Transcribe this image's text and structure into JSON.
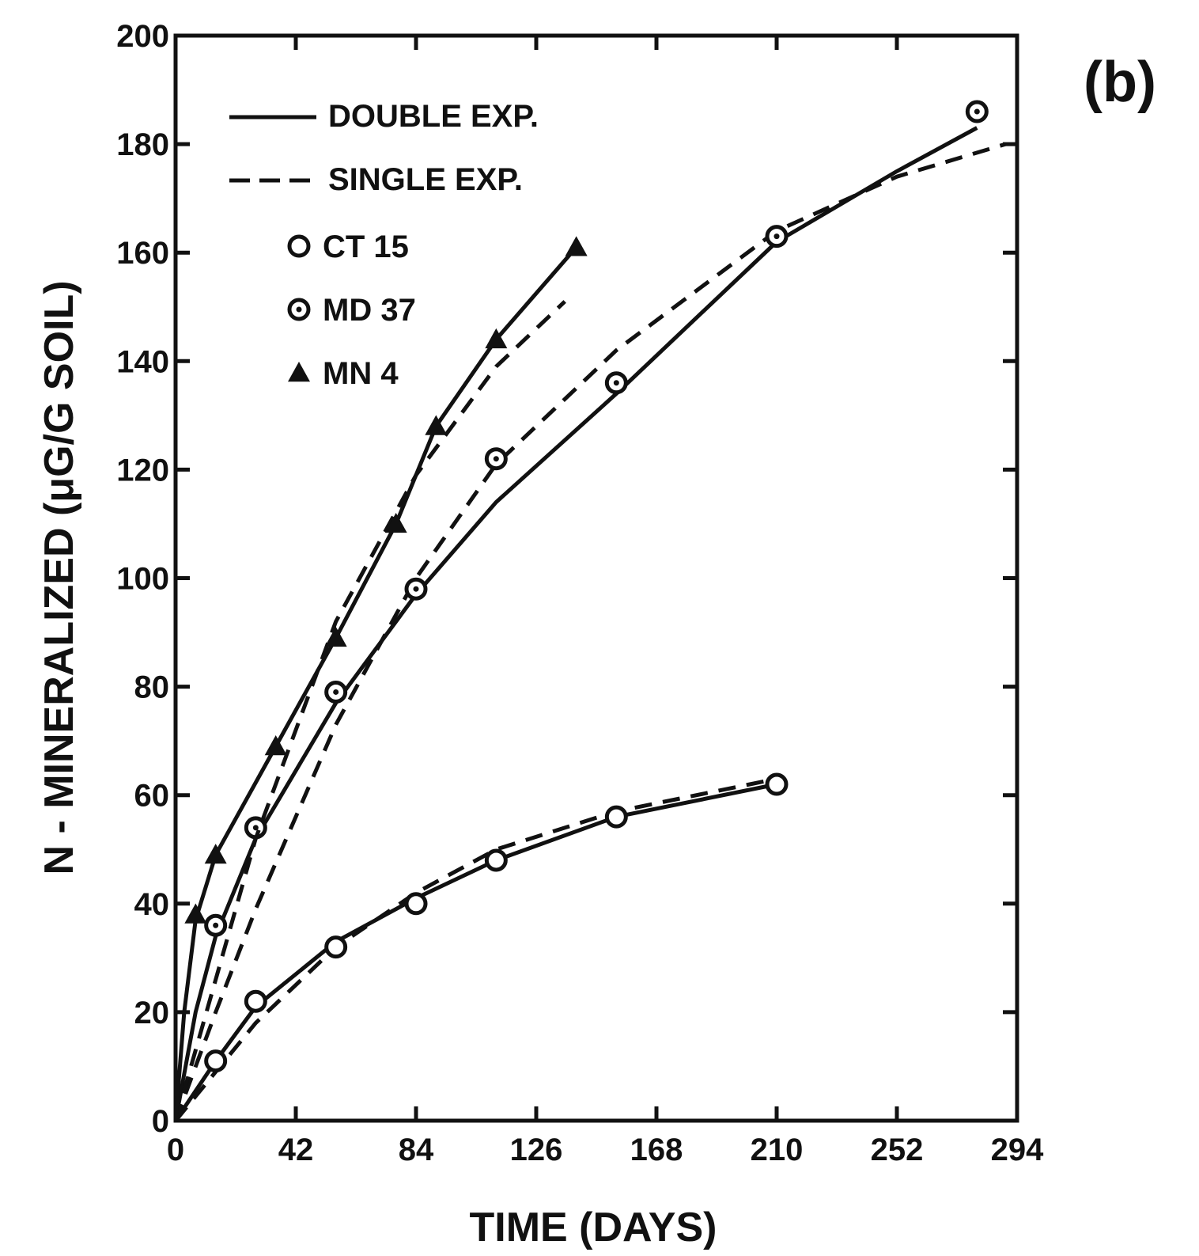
{
  "chart_data": {
    "type": "line",
    "panel_label": "(b)",
    "xlabel": "TIME (DAYS)",
    "ylabel": "N - MINERALIZED (μG/G SOIL)",
    "xlim": [
      0,
      294
    ],
    "ylim": [
      0,
      200
    ],
    "xticks": [
      0,
      42,
      84,
      126,
      168,
      210,
      252,
      294
    ],
    "yticks": [
      0,
      20,
      40,
      60,
      80,
      100,
      120,
      140,
      160,
      180,
      200
    ],
    "grid": false,
    "legend_position": "top-left",
    "legend": {
      "line_entries": [
        {
          "label": "DOUBLE EXP.",
          "style": "solid"
        },
        {
          "label": "SINGLE EXP.",
          "style": "dashed"
        }
      ],
      "marker_entries": [
        {
          "label": "CT 15",
          "marker": "open-circle"
        },
        {
          "label": "MD 37",
          "marker": "dotted-circle"
        },
        {
          "label": "MN 4",
          "marker": "triangle"
        }
      ]
    },
    "series": [
      {
        "name": "CT 15",
        "marker": "open-circle",
        "points": [
          {
            "x": 14,
            "y": 11
          },
          {
            "x": 28,
            "y": 22
          },
          {
            "x": 56,
            "y": 32
          },
          {
            "x": 84,
            "y": 40
          },
          {
            "x": 112,
            "y": 48
          },
          {
            "x": 154,
            "y": 56
          },
          {
            "x": 210,
            "y": 62
          }
        ],
        "double_exp": [
          {
            "x": 0,
            "y": 0
          },
          {
            "x": 14,
            "y": 11
          },
          {
            "x": 28,
            "y": 21
          },
          {
            "x": 56,
            "y": 33
          },
          {
            "x": 84,
            "y": 41
          },
          {
            "x": 112,
            "y": 48
          },
          {
            "x": 154,
            "y": 56
          },
          {
            "x": 210,
            "y": 62
          }
        ],
        "single_exp": [
          {
            "x": 0,
            "y": 0
          },
          {
            "x": 14,
            "y": 9
          },
          {
            "x": 28,
            "y": 18
          },
          {
            "x": 56,
            "y": 32
          },
          {
            "x": 84,
            "y": 42
          },
          {
            "x": 112,
            "y": 50
          },
          {
            "x": 154,
            "y": 57
          },
          {
            "x": 210,
            "y": 63
          }
        ]
      },
      {
        "name": "MD 37",
        "marker": "dotted-circle",
        "points": [
          {
            "x": 14,
            "y": 36
          },
          {
            "x": 28,
            "y": 54
          },
          {
            "x": 56,
            "y": 79
          },
          {
            "x": 84,
            "y": 98
          },
          {
            "x": 112,
            "y": 122
          },
          {
            "x": 154,
            "y": 136
          },
          {
            "x": 210,
            "y": 163
          },
          {
            "x": 280,
            "y": 186
          }
        ],
        "double_exp": [
          {
            "x": 0,
            "y": 0
          },
          {
            "x": 7,
            "y": 20
          },
          {
            "x": 14,
            "y": 34
          },
          {
            "x": 28,
            "y": 52
          },
          {
            "x": 56,
            "y": 77
          },
          {
            "x": 84,
            "y": 97
          },
          {
            "x": 112,
            "y": 114
          },
          {
            "x": 154,
            "y": 134
          },
          {
            "x": 210,
            "y": 162
          },
          {
            "x": 252,
            "y": 175
          },
          {
            "x": 280,
            "y": 183
          }
        ],
        "single_exp": [
          {
            "x": 0,
            "y": 0
          },
          {
            "x": 14,
            "y": 20
          },
          {
            "x": 28,
            "y": 39
          },
          {
            "x": 56,
            "y": 73
          },
          {
            "x": 84,
            "y": 100
          },
          {
            "x": 112,
            "y": 121
          },
          {
            "x": 154,
            "y": 142
          },
          {
            "x": 210,
            "y": 164
          },
          {
            "x": 252,
            "y": 174
          },
          {
            "x": 290,
            "y": 180
          }
        ]
      },
      {
        "name": "MN 4",
        "marker": "triangle",
        "points": [
          {
            "x": 7,
            "y": 38
          },
          {
            "x": 14,
            "y": 49
          },
          {
            "x": 35,
            "y": 69
          },
          {
            "x": 56,
            "y": 89
          },
          {
            "x": 77,
            "y": 110
          },
          {
            "x": 91,
            "y": 128
          },
          {
            "x": 112,
            "y": 144
          },
          {
            "x": 140,
            "y": 161
          }
        ],
        "double_exp": [
          {
            "x": 0,
            "y": 0
          },
          {
            "x": 3,
            "y": 20
          },
          {
            "x": 7,
            "y": 37
          },
          {
            "x": 14,
            "y": 49
          },
          {
            "x": 35,
            "y": 69
          },
          {
            "x": 56,
            "y": 89
          },
          {
            "x": 77,
            "y": 110
          },
          {
            "x": 91,
            "y": 128
          },
          {
            "x": 112,
            "y": 144
          },
          {
            "x": 140,
            "y": 161
          }
        ],
        "single_exp": [
          {
            "x": 0,
            "y": 0
          },
          {
            "x": 14,
            "y": 26
          },
          {
            "x": 28,
            "y": 52
          },
          {
            "x": 56,
            "y": 92
          },
          {
            "x": 84,
            "y": 119
          },
          {
            "x": 112,
            "y": 139
          },
          {
            "x": 136,
            "y": 151
          }
        ]
      }
    ]
  }
}
